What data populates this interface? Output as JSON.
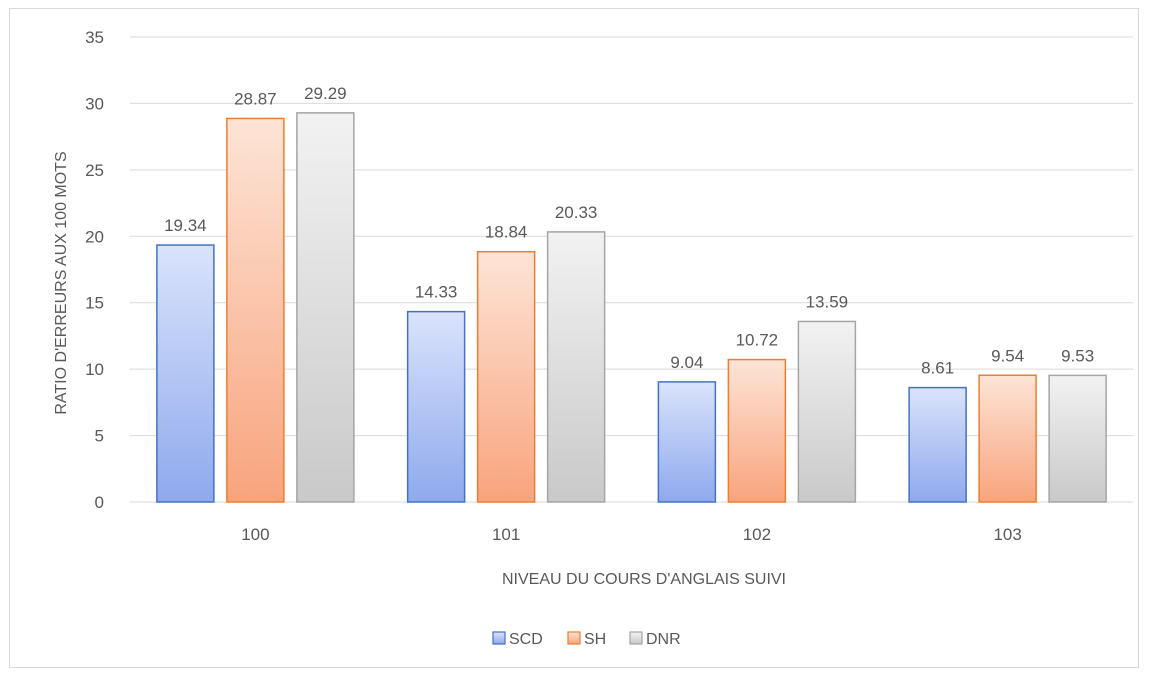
{
  "chart_data": {
    "type": "bar",
    "title": "",
    "xlabel": "NIVEAU DU COURS D'ANGLAIS SUIVI",
    "ylabel": "RATIO D'ERREURS AUX 100 MOTS",
    "categories": [
      "100",
      "101",
      "102",
      "103"
    ],
    "ylim": [
      0,
      35
    ],
    "yticks": [
      0,
      5,
      10,
      15,
      20,
      25,
      30,
      35
    ],
    "grid": true,
    "legend_position": "bottom",
    "series": [
      {
        "name": "SCD",
        "values": [
          19.34,
          14.33,
          9.04,
          8.61
        ],
        "labels": [
          "19.34",
          "14.33",
          "9.04",
          "8.61"
        ],
        "color_top": "#dae3fb",
        "color_bottom": "#8ea9ed",
        "stroke": "#4472c4"
      },
      {
        "name": "SH",
        "values": [
          28.87,
          18.84,
          10.72,
          9.54
        ],
        "labels": [
          "28.87",
          "18.84",
          "10.72",
          "9.54"
        ],
        "color_top": "#fde4d6",
        "color_bottom": "#f8a47d",
        "stroke": "#ed7d31"
      },
      {
        "name": "DNR",
        "values": [
          29.29,
          20.33,
          13.59,
          9.53
        ],
        "labels": [
          "29.29",
          "20.33",
          "13.59",
          "9.53"
        ],
        "color_top": "#f2f2f2",
        "color_bottom": "#c9c9c9",
        "stroke": "#a5a5a5"
      }
    ],
    "gridline_color": "#d9d9d9",
    "text_color": "#595959"
  }
}
